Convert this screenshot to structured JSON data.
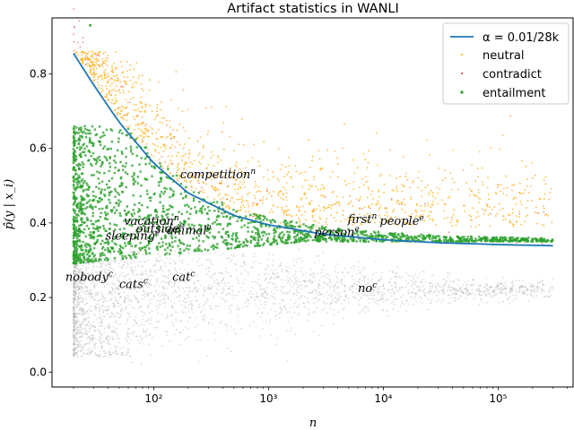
{
  "chart_data": {
    "type": "scatter",
    "title": "Artifact statistics in WANLI",
    "xlabel": "n",
    "ylabel": "p̂(y | x_i)",
    "xscale": "log",
    "xlim": [
      13,
      450000
    ],
    "ylim": [
      -0.04,
      0.95
    ],
    "x_ticks": [
      {
        "value": 100,
        "label": "10²"
      },
      {
        "value": 1000,
        "label": "10³"
      },
      {
        "value": 10000,
        "label": "10⁴"
      },
      {
        "value": 100000,
        "label": "10⁵"
      }
    ],
    "y_ticks": [
      {
        "value": 0.0,
        "label": "0.0"
      },
      {
        "value": 0.2,
        "label": "0.2"
      },
      {
        "value": 0.4,
        "label": "0.4"
      },
      {
        "value": 0.6,
        "label": "0.6"
      },
      {
        "value": 0.8,
        "label": "0.8"
      }
    ],
    "legend_position": "top-right",
    "grid": false,
    "threshold_line": {
      "name": "α = 0.01/28k",
      "color": "#1f77b4",
      "points": [
        [
          20,
          0.855
        ],
        [
          30,
          0.77
        ],
        [
          50,
          0.67
        ],
        [
          100,
          0.56
        ],
        [
          200,
          0.48
        ],
        [
          500,
          0.42
        ],
        [
          1000,
          0.395
        ],
        [
          3000,
          0.37
        ],
        [
          10000,
          0.355
        ],
        [
          30000,
          0.347
        ],
        [
          100000,
          0.342
        ],
        [
          300000,
          0.339
        ]
      ]
    },
    "series": [
      {
        "name": "neutral",
        "color": "#ffa500",
        "marker": "dot"
      },
      {
        "name": "contradict",
        "color": "#d62728",
        "marker": "dot"
      },
      {
        "name": "entailment",
        "color": "#2ca02c",
        "marker": "square"
      }
    ],
    "annotations": [
      {
        "text": "competition",
        "sup": "n",
        "x": 170,
        "y": 0.52
      },
      {
        "text": "vacation",
        "sup": "n",
        "x": 55,
        "y": 0.395
      },
      {
        "text": "outside",
        "sup": "e",
        "x": 70,
        "y": 0.375
      },
      {
        "text": "animal",
        "sup": "e",
        "x": 130,
        "y": 0.37
      },
      {
        "text": "sleeping",
        "sup": "e",
        "x": 38,
        "y": 0.355
      },
      {
        "text": "first",
        "sup": "n",
        "x": 4900,
        "y": 0.4
      },
      {
        "text": "people",
        "sup": "e",
        "x": 9300,
        "y": 0.395
      },
      {
        "text": "person",
        "sup": "e",
        "x": 2500,
        "y": 0.365
      },
      {
        "text": "nobody",
        "sup": "c",
        "x": 17,
        "y": 0.245
      },
      {
        "text": "cats",
        "sup": "c",
        "x": 50,
        "y": 0.225
      },
      {
        "text": "cat",
        "sup": "c",
        "x": 145,
        "y": 0.245
      },
      {
        "text": "no",
        "sup": "c",
        "x": 6000,
        "y": 0.215
      }
    ]
  }
}
